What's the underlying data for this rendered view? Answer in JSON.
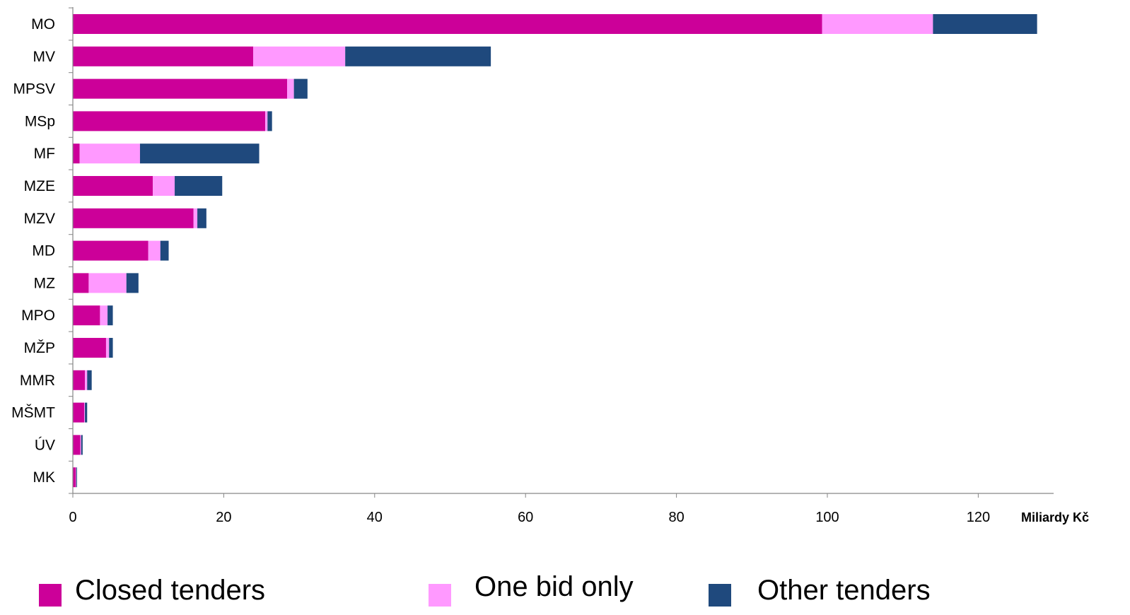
{
  "chart_data": {
    "type": "bar",
    "orientation": "horizontal",
    "stacked": true,
    "categories": [
      "MO",
      "MV",
      "MPSV",
      "MSp",
      "MF",
      "MZE",
      "MZV",
      "MD",
      "MZ",
      "MPO",
      "MŽP",
      "MMR",
      "MŠMT",
      "ÚV",
      "MK"
    ],
    "series": [
      {
        "name": "Closed tenders",
        "color": "#cc0099",
        "values": [
          99.3,
          23.9,
          28.4,
          25.5,
          0.9,
          10.6,
          16.0,
          10.0,
          2.1,
          3.6,
          4.4,
          1.6,
          1.5,
          1.0,
          0.4
        ]
      },
      {
        "name": "One bid only",
        "color": "#ff99ff",
        "values": [
          14.7,
          12.2,
          0.9,
          0.3,
          8.0,
          2.9,
          0.5,
          1.6,
          5.0,
          1.0,
          0.4,
          0.3,
          0.1,
          0.1,
          0.05
        ]
      },
      {
        "name": "Other tenders",
        "color": "#1f497d",
        "values": [
          13.8,
          19.3,
          1.8,
          0.6,
          15.8,
          6.3,
          1.2,
          1.1,
          1.6,
          0.7,
          0.5,
          0.6,
          0.3,
          0.2,
          0.1
        ]
      }
    ],
    "xlim": [
      0,
      130
    ],
    "xticks": [
      0,
      20,
      40,
      60,
      80,
      100,
      120
    ],
    "xunit": "Miliardy Kč",
    "grid": false,
    "legend": "bottom"
  }
}
